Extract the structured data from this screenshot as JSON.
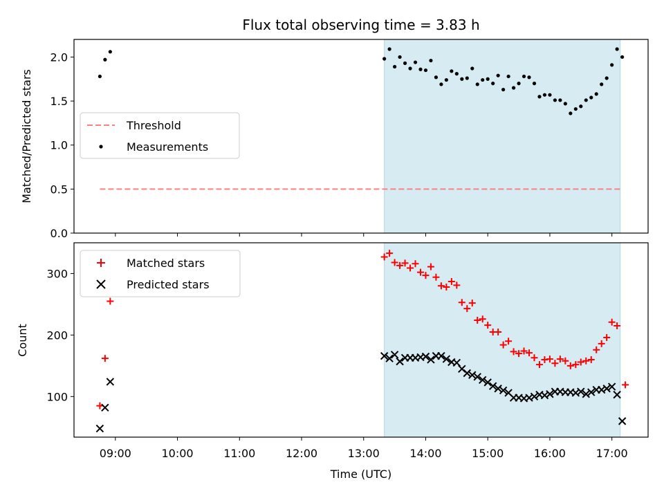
{
  "chart_data": [
    {
      "type": "scatter",
      "title": "Flux total observing time = 3.83 h",
      "xlabel": "",
      "ylabel": "Matched/Predicted stars",
      "ylim": [
        0,
        2.2
      ],
      "yticks": [
        "0.0",
        "0.5",
        "1.0",
        "1.5",
        "2.0"
      ],
      "shaded_span": [
        "13:20",
        "17:08"
      ],
      "shaded_color": "#add8e6",
      "legend_position": "center-left",
      "series": [
        {
          "name": "Threshold",
          "kind": "dashed-line",
          "color": "#ff7f7f",
          "x": [
            "08:45",
            "17:08"
          ],
          "values": [
            0.5,
            0.5
          ]
        },
        {
          "name": "Measurements",
          "kind": "dot",
          "color": "#000000",
          "x": [
            "08:45",
            "08:50",
            "08:55",
            "13:20",
            "13:25",
            "13:30",
            "13:35",
            "13:40",
            "13:45",
            "13:50",
            "13:55",
            "14:00",
            "14:05",
            "14:10",
            "14:15",
            "14:20",
            "14:25",
            "14:30",
            "14:35",
            "14:40",
            "14:45",
            "14:50",
            "14:55",
            "15:00",
            "15:05",
            "15:10",
            "15:15",
            "15:20",
            "15:25",
            "15:30",
            "15:35",
            "15:40",
            "15:45",
            "15:50",
            "15:55",
            "16:00",
            "16:05",
            "16:10",
            "16:15",
            "16:20",
            "16:25",
            "16:30",
            "16:35",
            "16:40",
            "16:45",
            "16:50",
            "16:55",
            "17:00",
            "17:05",
            "17:10"
          ],
          "values": [
            1.78,
            1.97,
            2.06,
            1.98,
            2.09,
            1.89,
            2.0,
            1.93,
            1.87,
            1.94,
            1.86,
            1.85,
            1.96,
            1.77,
            1.69,
            1.74,
            1.84,
            1.81,
            1.75,
            1.76,
            1.87,
            1.69,
            1.74,
            1.75,
            1.7,
            1.79,
            1.63,
            1.78,
            1.65,
            1.7,
            1.78,
            1.77,
            1.7,
            1.55,
            1.57,
            1.57,
            1.51,
            1.51,
            1.47,
            1.36,
            1.41,
            1.44,
            1.51,
            1.54,
            1.58,
            1.69,
            1.76,
            1.91,
            2.09,
            2.0
          ]
        }
      ]
    },
    {
      "type": "scatter",
      "title": "",
      "xlabel": "Time (UTC)",
      "ylabel": "Count",
      "ylim": [
        34,
        350
      ],
      "yticks": [
        "100",
        "200",
        "300"
      ],
      "xticks": [
        "09:00",
        "10:00",
        "11:00",
        "12:00",
        "13:00",
        "14:00",
        "15:00",
        "16:00",
        "17:00"
      ],
      "xlim": [
        "08:20",
        "17:35"
      ],
      "shaded_span": [
        "13:20",
        "17:08"
      ],
      "shaded_color": "#add8e6",
      "legend_position": "top-left",
      "series": [
        {
          "name": "Matched stars",
          "kind": "plus",
          "color": "#ff0000",
          "x": [
            "08:45",
            "08:50",
            "08:55",
            "13:20",
            "13:25",
            "13:30",
            "13:35",
            "13:40",
            "13:45",
            "13:50",
            "13:55",
            "14:00",
            "14:05",
            "14:10",
            "14:15",
            "14:20",
            "14:25",
            "14:30",
            "14:35",
            "14:40",
            "14:45",
            "14:50",
            "14:55",
            "15:00",
            "15:05",
            "15:10",
            "15:15",
            "15:20",
            "15:25",
            "15:30",
            "15:35",
            "15:40",
            "15:45",
            "15:50",
            "15:55",
            "16:00",
            "16:05",
            "16:10",
            "16:15",
            "16:20",
            "16:25",
            "16:30",
            "16:35",
            "16:40",
            "16:45",
            "16:50",
            "16:55",
            "17:00",
            "17:05",
            "17:13"
          ],
          "values": [
            85,
            162,
            255,
            327,
            333,
            318,
            313,
            317,
            309,
            316,
            302,
            297,
            311,
            294,
            280,
            278,
            287,
            281,
            253,
            243,
            252,
            224,
            226,
            216,
            205,
            205,
            184,
            190,
            173,
            170,
            174,
            171,
            163,
            152,
            160,
            161,
            154,
            161,
            158,
            150,
            152,
            156,
            158,
            160,
            176,
            186,
            196,
            221,
            215,
            119
          ]
        },
        {
          "name": "Predicted stars",
          "kind": "x",
          "color": "#000000",
          "x": [
            "08:45",
            "08:50",
            "08:55",
            "13:20",
            "13:25",
            "13:30",
            "13:35",
            "13:40",
            "13:45",
            "13:50",
            "13:55",
            "14:00",
            "14:05",
            "14:10",
            "14:15",
            "14:20",
            "14:25",
            "14:30",
            "14:35",
            "14:40",
            "14:45",
            "14:50",
            "14:55",
            "15:00",
            "15:05",
            "15:10",
            "15:15",
            "15:20",
            "15:25",
            "15:30",
            "15:35",
            "15:40",
            "15:45",
            "15:50",
            "15:55",
            "16:00",
            "16:05",
            "16:10",
            "16:15",
            "16:20",
            "16:25",
            "16:30",
            "16:35",
            "16:40",
            "16:45",
            "16:50",
            "16:55",
            "17:00",
            "17:05",
            "17:10"
          ],
          "values": [
            48,
            82,
            124,
            166,
            162,
            168,
            157,
            163,
            163,
            163,
            164,
            165,
            160,
            166,
            166,
            161,
            156,
            155,
            145,
            138,
            135,
            132,
            127,
            123,
            117,
            113,
            110,
            106,
            98,
            98,
            97,
            98,
            100,
            103,
            102,
            104,
            108,
            108,
            107,
            107,
            106,
            108,
            104,
            107,
            111,
            111,
            113,
            116,
            103,
            60
          ]
        }
      ]
    }
  ]
}
